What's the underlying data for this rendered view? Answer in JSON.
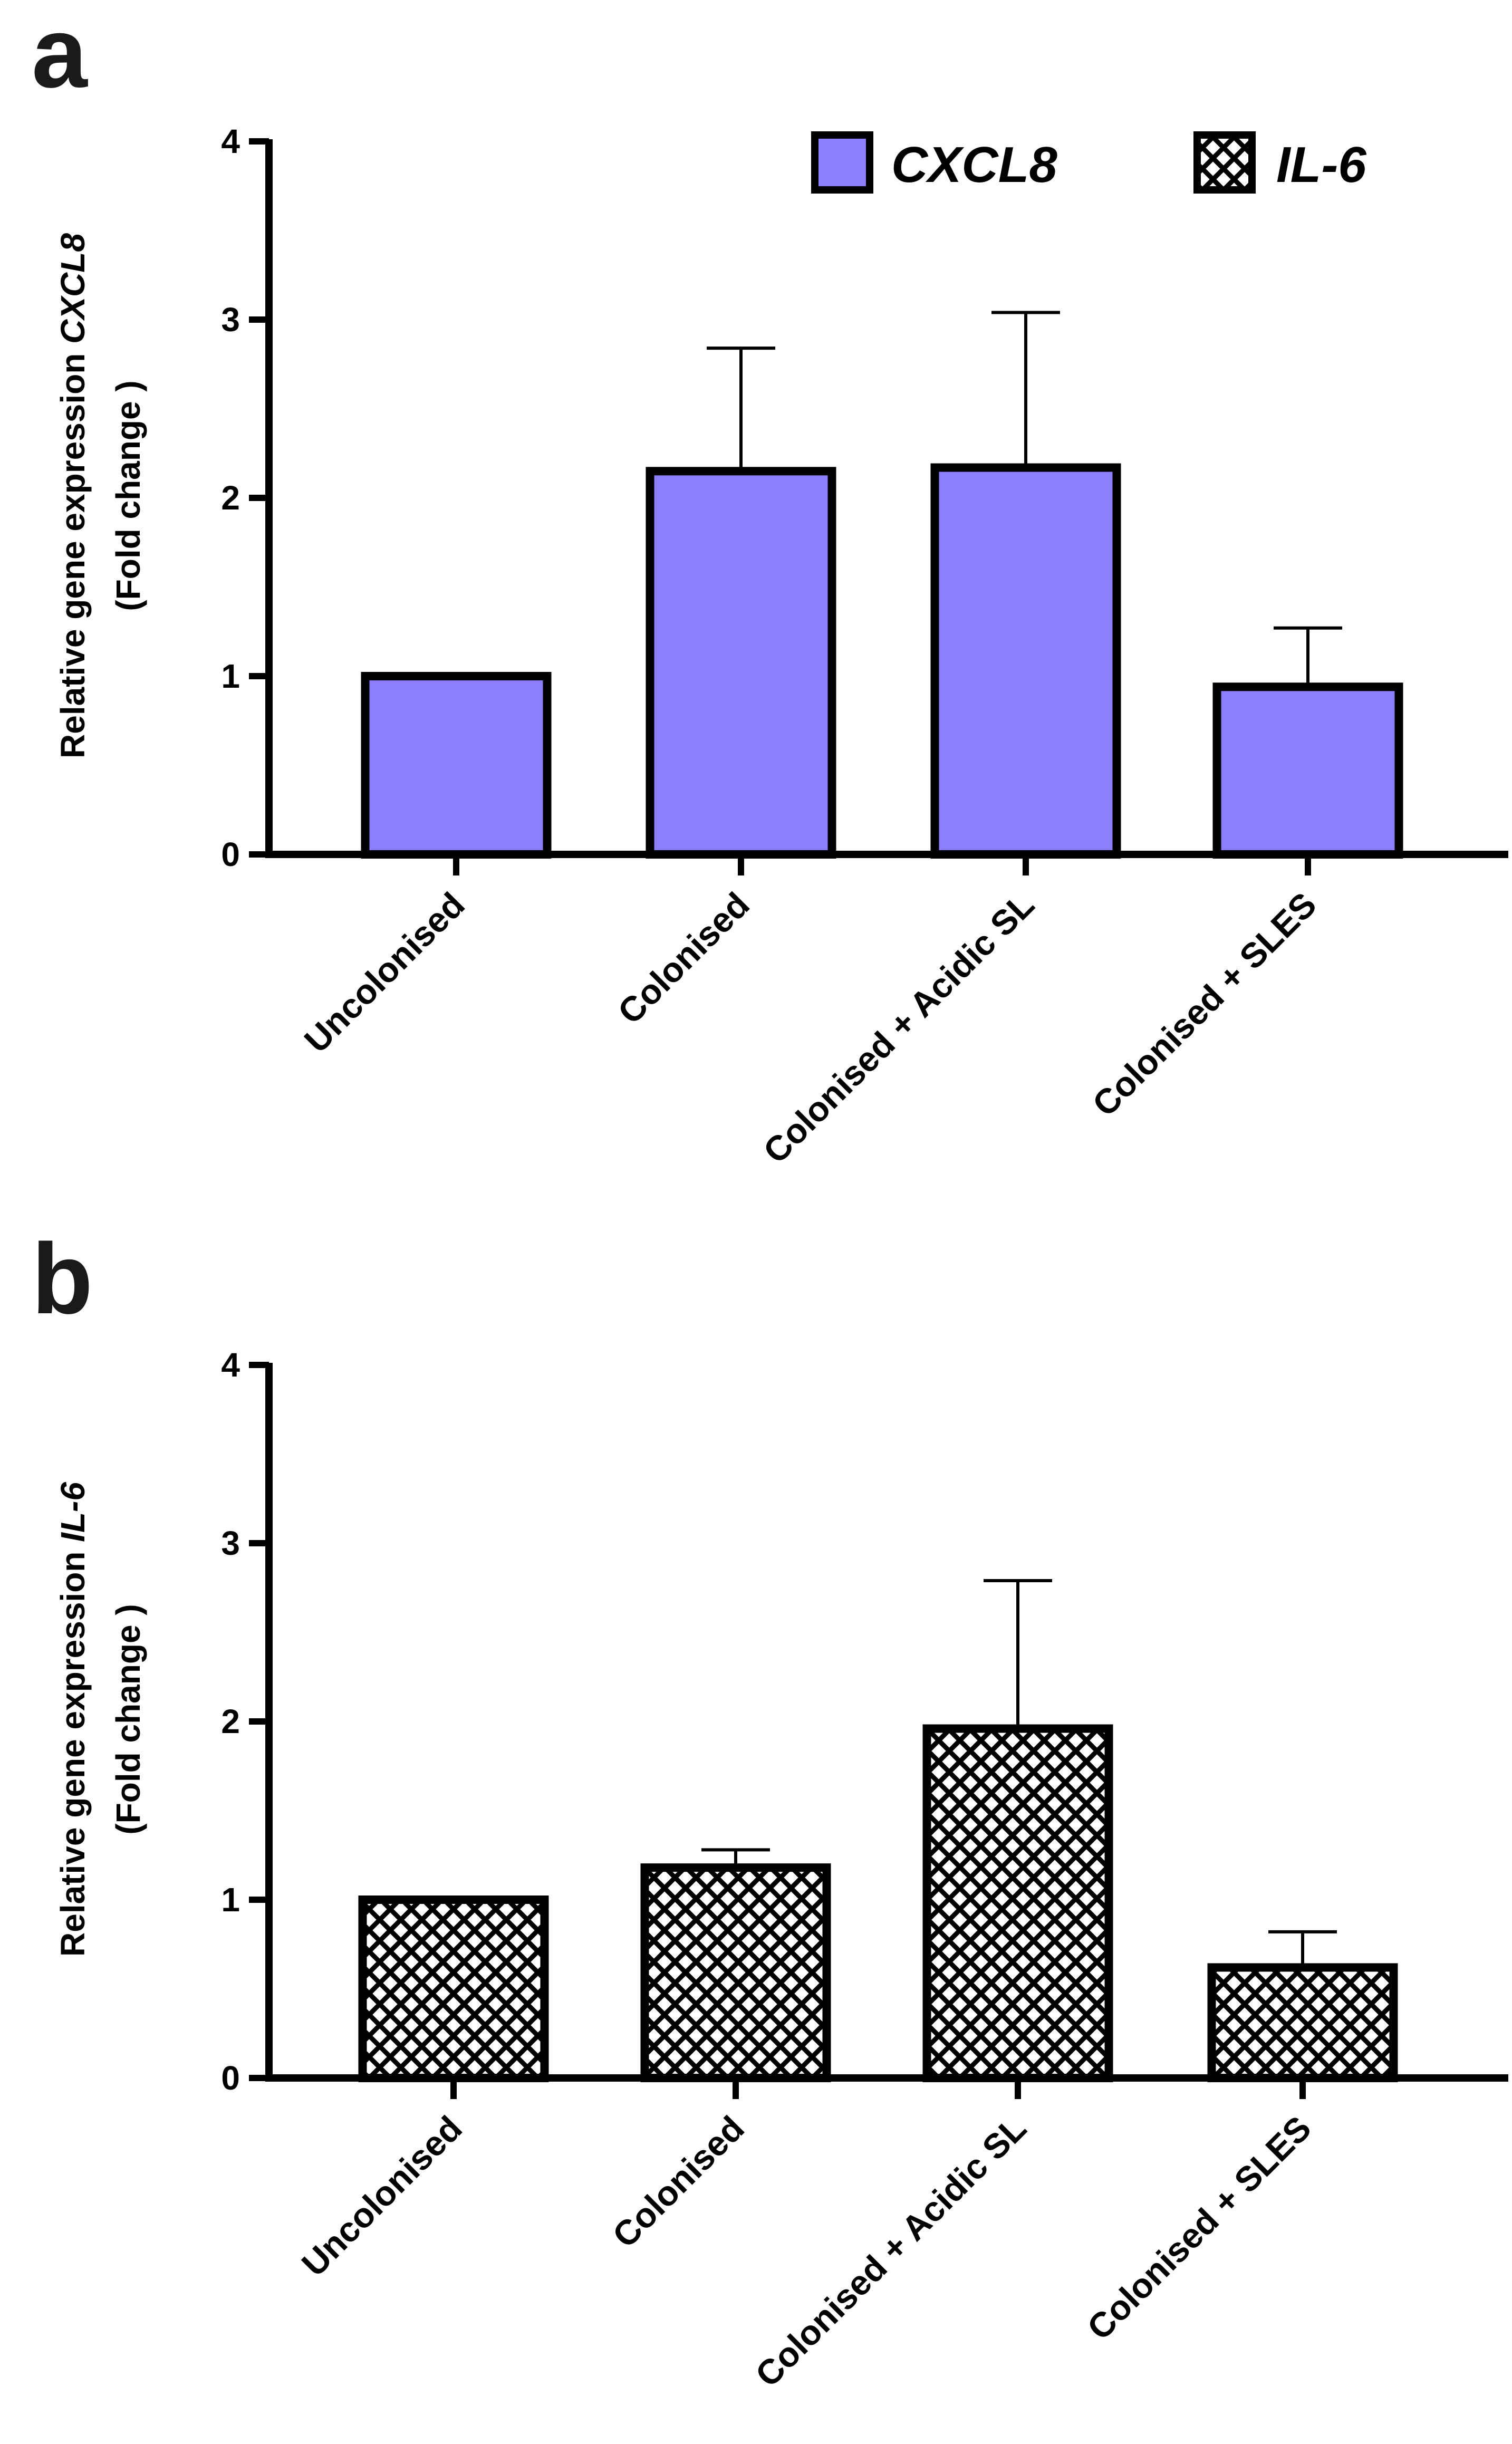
{
  "chart_data": [
    {
      "panel": "a",
      "type": "bar",
      "categories": [
        "Uncolonised",
        "Colonised",
        "Colonised + Acidic SL",
        "Colonised + SLES"
      ],
      "values": [
        1.0,
        2.15,
        2.17,
        0.94
      ],
      "errors": [
        0,
        0.69,
        0.87,
        0.33
      ],
      "ylabel_main": "Relative gene expression ",
      "ylabel_gene": "CXCL8",
      "ylabel_sub": "(Fold change )",
      "ylim": [
        0,
        4
      ],
      "yticks": [
        "0",
        "1",
        "2",
        "3",
        "4"
      ],
      "fill": "#8c7dfa",
      "pattern": "solid",
      "legend": [
        {
          "label": "CXCL8",
          "style": "solid",
          "color": "#8c7dfa"
        },
        {
          "label": "IL-6",
          "style": "crosshatch",
          "color": "#000000"
        }
      ]
    },
    {
      "panel": "b",
      "type": "bar",
      "categories": [
        "Uncolonised",
        "Colonised",
        "Colonised + Acidic SL",
        "Colonised + SLES"
      ],
      "values": [
        1.0,
        1.18,
        1.96,
        0.62
      ],
      "errors": [
        0,
        0.1,
        0.83,
        0.2
      ],
      "ylabel_main": "Relative gene expression ",
      "ylabel_gene": "IL-6",
      "ylabel_sub": "(Fold change )",
      "ylim": [
        0,
        4
      ],
      "yticks": [
        "0",
        "1",
        "2",
        "3",
        "4"
      ],
      "fill": "#ffffff",
      "pattern": "crosshatch"
    }
  ]
}
